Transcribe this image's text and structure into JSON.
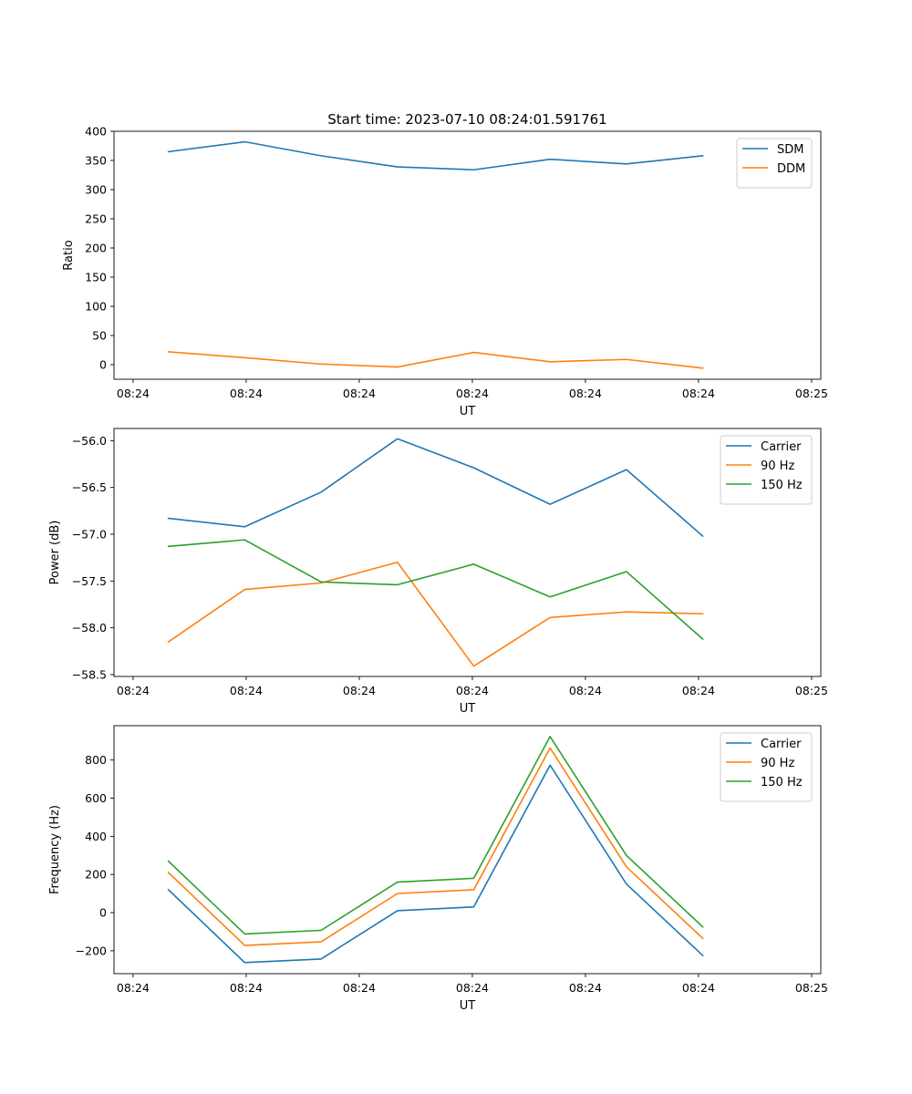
{
  "figure_title": "Start time: 2023-07-10 08:24:01.591761",
  "colors": {
    "c0": "#1f77b4",
    "c1": "#ff7f0e",
    "c2": "#2ca02c"
  },
  "chart_data": [
    {
      "type": "line",
      "title": "Start time: 2023-07-10 08:24:01.591761",
      "xlabel": "UT",
      "ylabel": "Ratio",
      "xlim": [
        -0.77,
        9.23
      ],
      "ylim": [
        -25,
        400
      ],
      "x": [
        0,
        1.08,
        2.16,
        3.24,
        4.32,
        5.4,
        6.48,
        7.56
      ],
      "xticks": [
        -0.5,
        1.1,
        2.7,
        4.3,
        5.9,
        7.5,
        9.1
      ],
      "xtick_labels": [
        "08:24",
        "08:24",
        "08:24",
        "08:24",
        "08:24",
        "08:24",
        "08:25"
      ],
      "yticks": [
        0,
        50,
        100,
        150,
        200,
        250,
        300,
        350,
        400
      ],
      "ytick_labels": [
        "0",
        "50",
        "100",
        "150",
        "200",
        "250",
        "300",
        "350",
        "400"
      ],
      "legend_position": "top-right",
      "series": [
        {
          "name": "SDM",
          "color": "#1f77b4",
          "values": [
            365,
            382,
            358,
            339,
            334,
            352,
            344,
            358
          ]
        },
        {
          "name": "DDM",
          "color": "#ff7f0e",
          "values": [
            22,
            12,
            1,
            -4,
            21,
            5,
            9,
            -6
          ]
        }
      ]
    },
    {
      "type": "line",
      "xlabel": "UT",
      "ylabel": "Power (dB)",
      "xlim": [
        -0.77,
        9.23
      ],
      "ylim": [
        -58.52,
        -55.87
      ],
      "x": [
        0,
        1.08,
        2.16,
        3.24,
        4.32,
        5.4,
        6.48,
        7.56
      ],
      "xticks": [
        -0.5,
        1.1,
        2.7,
        4.3,
        5.9,
        7.5,
        9.1
      ],
      "xtick_labels": [
        "08:24",
        "08:24",
        "08:24",
        "08:24",
        "08:24",
        "08:24",
        "08:25"
      ],
      "yticks": [
        -56.0,
        -56.5,
        -57.0,
        -57.5,
        -58.0,
        -58.5
      ],
      "ytick_labels": [
        "−56.0",
        "−56.5",
        "−57.0",
        "−57.5",
        "−58.0",
        "−58.5"
      ],
      "legend_position": "top-right",
      "series": [
        {
          "name": "Carrier",
          "color": "#1f77b4",
          "values": [
            -56.83,
            -56.92,
            -56.55,
            -55.98,
            -56.29,
            -56.68,
            -56.31,
            -57.02
          ]
        },
        {
          "name": "90 Hz",
          "color": "#ff7f0e",
          "values": [
            -58.15,
            -57.59,
            -57.52,
            -57.3,
            -58.41,
            -57.89,
            -57.83,
            -57.85
          ]
        },
        {
          "name": "150 Hz",
          "color": "#2ca02c",
          "values": [
            -57.13,
            -57.06,
            -57.51,
            -57.54,
            -57.32,
            -57.67,
            -57.4,
            -58.12
          ]
        }
      ]
    },
    {
      "type": "line",
      "xlabel": "UT",
      "ylabel": "Frequency (Hz)",
      "xlim": [
        -0.77,
        9.23
      ],
      "ylim": [
        -320,
        980
      ],
      "x": [
        0,
        1.08,
        2.16,
        3.24,
        4.32,
        5.4,
        6.48,
        7.56
      ],
      "xticks": [
        -0.5,
        1.1,
        2.7,
        4.3,
        5.9,
        7.5,
        9.1
      ],
      "xtick_labels": [
        "08:24",
        "08:24",
        "08:24",
        "08:24",
        "08:24",
        "08:24",
        "08:25"
      ],
      "yticks": [
        -200,
        0,
        200,
        400,
        600,
        800
      ],
      "ytick_labels": [
        "−200",
        "0",
        "200",
        "400",
        "600",
        "800"
      ],
      "legend_position": "top-right",
      "series": [
        {
          "name": "Carrier",
          "color": "#1f77b4",
          "values": [
            120,
            -262,
            -243,
            10,
            30,
            773,
            150,
            -225
          ]
        },
        {
          "name": "90 Hz",
          "color": "#ff7f0e",
          "values": [
            210,
            -172,
            -153,
            100,
            120,
            863,
            240,
            -135
          ]
        },
        {
          "name": "150 Hz",
          "color": "#2ca02c",
          "values": [
            270,
            -112,
            -93,
            160,
            180,
            923,
            300,
            -75
          ]
        }
      ]
    }
  ]
}
